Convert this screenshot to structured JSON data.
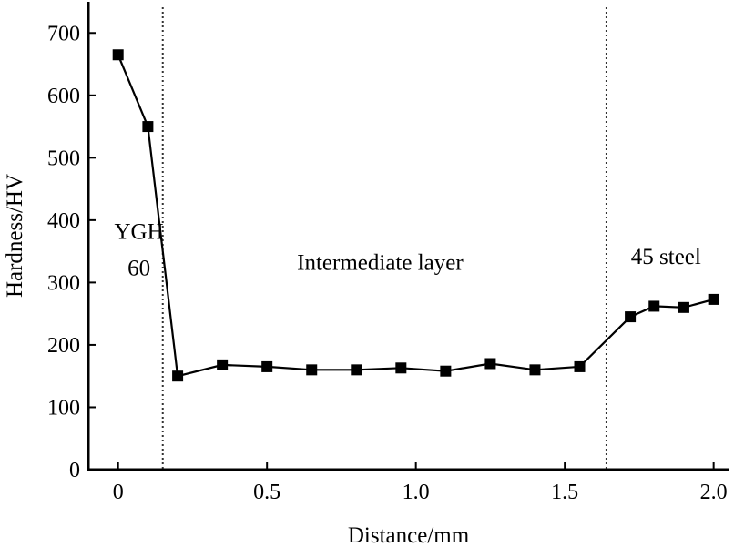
{
  "chart_data": {
    "type": "line",
    "xlabel": "Distance/mm",
    "ylabel": "Hardness/HV",
    "xlim": [
      -0.1,
      2.05
    ],
    "ylim": [
      0,
      750
    ],
    "xticks": [
      0,
      0.5,
      1.0,
      1.5,
      2.0
    ],
    "xtick_labels": [
      "0",
      "0.5",
      "1.0",
      "1.5",
      "2.0"
    ],
    "yticks": [
      0,
      100,
      200,
      300,
      400,
      500,
      600,
      700
    ],
    "ytick_labels": [
      "0",
      "100",
      "200",
      "300",
      "400",
      "500",
      "600",
      "700"
    ],
    "grid": false,
    "series": [
      {
        "marker": "square",
        "color": "#000000",
        "x": [
          0,
          0.1,
          0.2,
          0.35,
          0.5,
          0.65,
          0.8,
          0.95,
          1.1,
          1.25,
          1.4,
          1.55,
          1.72,
          1.8,
          1.9,
          2.0
        ],
        "y": [
          665,
          550,
          150,
          168,
          165,
          160,
          160,
          163,
          158,
          170,
          160,
          165,
          245,
          262,
          260,
          273
        ]
      }
    ],
    "boundaries": [
      0.15,
      1.64
    ],
    "annotations": [
      {
        "lines": [
          "YGH",
          "60"
        ],
        "x": 0.07,
        "y": 370
      },
      {
        "lines": [
          "Intermediate layer"
        ],
        "x": 0.88,
        "y": 320
      },
      {
        "lines": [
          "45 steel"
        ],
        "x": 1.84,
        "y": 330
      }
    ]
  }
}
